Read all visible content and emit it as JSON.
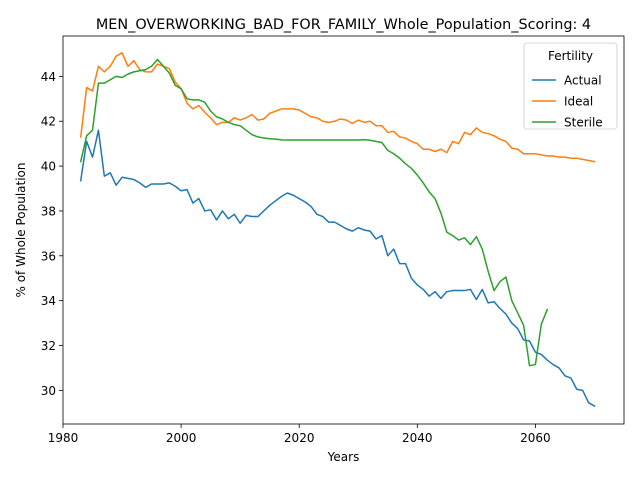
{
  "chart_data": {
    "type": "line",
    "title": "MEN_OVERWORKING_BAD_FOR_FAMILY_Whole_Population_Scoring: 4",
    "xlabel": "Years",
    "ylabel": "% of Whole Population",
    "xlim": [
      1980,
      2075
    ],
    "ylim": [
      28.5,
      45.8
    ],
    "xticks": [
      1980,
      2000,
      2020,
      2040,
      2060
    ],
    "yticks": [
      30,
      32,
      34,
      36,
      38,
      40,
      42,
      44
    ],
    "grid": false,
    "legend": {
      "title": "Fertility",
      "position": "top-right"
    },
    "series": [
      {
        "name": "Actual",
        "color": "#1f77b4",
        "points": [
          [
            1983,
            39.35
          ],
          [
            1984,
            41.1
          ],
          [
            1985,
            40.4
          ],
          [
            1986,
            41.6
          ],
          [
            1987,
            39.55
          ],
          [
            1988,
            39.7
          ],
          [
            1989,
            39.15
          ],
          [
            1990,
            39.5
          ],
          [
            1991,
            39.45
          ],
          [
            1992,
            39.4
          ],
          [
            1993,
            39.25
          ],
          [
            1994,
            39.05
          ],
          [
            1995,
            39.2
          ],
          [
            1996,
            39.2
          ],
          [
            1997,
            39.2
          ],
          [
            1998,
            39.25
          ],
          [
            1999,
            39.1
          ],
          [
            2000,
            38.9
          ],
          [
            2001,
            38.95
          ],
          [
            2002,
            38.35
          ],
          [
            2003,
            38.55
          ],
          [
            2004,
            38.0
          ],
          [
            2005,
            38.05
          ],
          [
            2006,
            37.6
          ],
          [
            2007,
            38.0
          ],
          [
            2008,
            37.65
          ],
          [
            2009,
            37.85
          ],
          [
            2010,
            37.45
          ],
          [
            2011,
            37.8
          ],
          [
            2012,
            37.75
          ],
          [
            2013,
            37.75
          ],
          [
            2014,
            38.0
          ],
          [
            2015,
            38.25
          ],
          [
            2016,
            38.45
          ],
          [
            2017,
            38.65
          ],
          [
            2018,
            38.8
          ],
          [
            2019,
            38.7
          ],
          [
            2020,
            38.55
          ],
          [
            2021,
            38.4
          ],
          [
            2022,
            38.2
          ],
          [
            2023,
            37.85
          ],
          [
            2024,
            37.75
          ],
          [
            2025,
            37.5
          ],
          [
            2026,
            37.5
          ],
          [
            2027,
            37.35
          ],
          [
            2028,
            37.2
          ],
          [
            2029,
            37.1
          ],
          [
            2030,
            37.25
          ],
          [
            2031,
            37.15
          ],
          [
            2032,
            37.1
          ],
          [
            2033,
            36.75
          ],
          [
            2034,
            36.9
          ],
          [
            2035,
            36.0
          ],
          [
            2036,
            36.3
          ],
          [
            2037,
            35.65
          ],
          [
            2038,
            35.65
          ],
          [
            2039,
            35.0
          ],
          [
            2040,
            34.7
          ],
          [
            2041,
            34.5
          ],
          [
            2042,
            34.2
          ],
          [
            2043,
            34.4
          ],
          [
            2044,
            34.1
          ],
          [
            2045,
            34.4
          ],
          [
            2046,
            34.45
          ],
          [
            2047,
            34.45
          ],
          [
            2048,
            34.45
          ],
          [
            2049,
            34.5
          ],
          [
            2050,
            34.05
          ],
          [
            2051,
            34.5
          ],
          [
            2052,
            33.9
          ],
          [
            2053,
            33.95
          ],
          [
            2054,
            33.65
          ],
          [
            2055,
            33.4
          ],
          [
            2056,
            33.0
          ],
          [
            2057,
            32.75
          ],
          [
            2058,
            32.25
          ],
          [
            2059,
            32.2
          ],
          [
            2060,
            31.7
          ],
          [
            2061,
            31.6
          ],
          [
            2062,
            31.35
          ],
          [
            2063,
            31.15
          ],
          [
            2064,
            31.0
          ],
          [
            2065,
            30.65
          ],
          [
            2066,
            30.55
          ],
          [
            2067,
            30.05
          ],
          [
            2068,
            30.0
          ],
          [
            2069,
            29.45
          ],
          [
            2070,
            29.3
          ]
        ]
      },
      {
        "name": "Ideal",
        "color": "#ff7f0e",
        "points": [
          [
            1983,
            41.3
          ],
          [
            1984,
            43.5
          ],
          [
            1985,
            43.35
          ],
          [
            1986,
            44.45
          ],
          [
            1987,
            44.2
          ],
          [
            1988,
            44.45
          ],
          [
            1989,
            44.9
          ],
          [
            1990,
            45.05
          ],
          [
            1991,
            44.45
          ],
          [
            1992,
            44.7
          ],
          [
            1993,
            44.3
          ],
          [
            1994,
            44.2
          ],
          [
            1995,
            44.2
          ],
          [
            1996,
            44.55
          ],
          [
            1997,
            44.45
          ],
          [
            1998,
            44.35
          ],
          [
            1999,
            43.75
          ],
          [
            2000,
            43.45
          ],
          [
            2001,
            42.8
          ],
          [
            2002,
            42.55
          ],
          [
            2003,
            42.7
          ],
          [
            2004,
            42.4
          ],
          [
            2005,
            42.15
          ],
          [
            2006,
            41.85
          ],
          [
            2007,
            41.95
          ],
          [
            2008,
            41.95
          ],
          [
            2009,
            42.15
          ],
          [
            2010,
            42.05
          ],
          [
            2011,
            42.15
          ],
          [
            2012,
            42.3
          ],
          [
            2013,
            42.05
          ],
          [
            2014,
            42.1
          ],
          [
            2015,
            42.35
          ],
          [
            2016,
            42.45
          ],
          [
            2017,
            42.55
          ],
          [
            2018,
            42.55
          ],
          [
            2019,
            42.55
          ],
          [
            2020,
            42.5
          ],
          [
            2021,
            42.35
          ],
          [
            2022,
            42.2
          ],
          [
            2023,
            42.15
          ],
          [
            2024,
            42.0
          ],
          [
            2025,
            41.95
          ],
          [
            2026,
            42.0
          ],
          [
            2027,
            42.1
          ],
          [
            2028,
            42.05
          ],
          [
            2029,
            41.9
          ],
          [
            2030,
            42.05
          ],
          [
            2031,
            41.95
          ],
          [
            2032,
            42.0
          ],
          [
            2033,
            41.8
          ],
          [
            2034,
            41.8
          ],
          [
            2035,
            41.5
          ],
          [
            2036,
            41.55
          ],
          [
            2037,
            41.3
          ],
          [
            2038,
            41.25
          ],
          [
            2039,
            41.1
          ],
          [
            2040,
            41.0
          ],
          [
            2041,
            40.75
          ],
          [
            2042,
            40.75
          ],
          [
            2043,
            40.65
          ],
          [
            2044,
            40.75
          ],
          [
            2045,
            40.6
          ],
          [
            2046,
            41.1
          ],
          [
            2047,
            41.0
          ],
          [
            2048,
            41.5
          ],
          [
            2049,
            41.4
          ],
          [
            2050,
            41.7
          ],
          [
            2051,
            41.5
          ],
          [
            2052,
            41.45
          ],
          [
            2053,
            41.35
          ],
          [
            2054,
            41.2
          ],
          [
            2055,
            41.1
          ],
          [
            2056,
            40.8
          ],
          [
            2057,
            40.75
          ],
          [
            2058,
            40.55
          ],
          [
            2059,
            40.55
          ],
          [
            2060,
            40.55
          ],
          [
            2061,
            40.5
          ],
          [
            2062,
            40.45
          ],
          [
            2063,
            40.45
          ],
          [
            2064,
            40.4
          ],
          [
            2065,
            40.4
          ],
          [
            2066,
            40.35
          ],
          [
            2067,
            40.35
          ],
          [
            2068,
            40.3
          ],
          [
            2069,
            40.25
          ],
          [
            2070,
            40.2
          ]
        ]
      },
      {
        "name": "Sterile",
        "color": "#2ca02c",
        "points": [
          [
            1983,
            40.2
          ],
          [
            1984,
            41.35
          ],
          [
            1985,
            41.6
          ],
          [
            1986,
            43.7
          ],
          [
            1987,
            43.7
          ],
          [
            1988,
            43.85
          ],
          [
            1989,
            44.0
          ],
          [
            1990,
            43.95
          ],
          [
            1991,
            44.1
          ],
          [
            1992,
            44.2
          ],
          [
            1993,
            44.25
          ],
          [
            1994,
            44.3
          ],
          [
            1995,
            44.45
          ],
          [
            1996,
            44.75
          ],
          [
            1997,
            44.45
          ],
          [
            1998,
            44.15
          ],
          [
            1999,
            43.6
          ],
          [
            2000,
            43.45
          ],
          [
            2001,
            43.0
          ],
          [
            2002,
            42.95
          ],
          [
            2003,
            42.95
          ],
          [
            2004,
            42.85
          ],
          [
            2005,
            42.45
          ],
          [
            2006,
            42.2
          ],
          [
            2007,
            42.1
          ],
          [
            2008,
            41.95
          ],
          [
            2009,
            41.85
          ],
          [
            2010,
            41.8
          ],
          [
            2011,
            41.6
          ],
          [
            2012,
            41.4
          ],
          [
            2013,
            41.3
          ],
          [
            2014,
            41.25
          ],
          [
            2015,
            41.22
          ],
          [
            2016,
            41.2
          ],
          [
            2017,
            41.17
          ],
          [
            2018,
            41.16
          ],
          [
            2019,
            41.16
          ],
          [
            2020,
            41.16
          ],
          [
            2021,
            41.16
          ],
          [
            2022,
            41.16
          ],
          [
            2023,
            41.16
          ],
          [
            2024,
            41.16
          ],
          [
            2025,
            41.16
          ],
          [
            2026,
            41.16
          ],
          [
            2027,
            41.16
          ],
          [
            2028,
            41.16
          ],
          [
            2029,
            41.16
          ],
          [
            2030,
            41.16
          ],
          [
            2031,
            41.18
          ],
          [
            2032,
            41.15
          ],
          [
            2033,
            41.1
          ],
          [
            2034,
            41.05
          ],
          [
            2035,
            40.7
          ],
          [
            2036,
            40.55
          ],
          [
            2037,
            40.35
          ],
          [
            2038,
            40.1
          ],
          [
            2039,
            39.9
          ],
          [
            2040,
            39.6
          ],
          [
            2041,
            39.25
          ],
          [
            2042,
            38.85
          ],
          [
            2043,
            38.55
          ],
          [
            2044,
            37.9
          ],
          [
            2045,
            37.05
          ],
          [
            2046,
            36.9
          ],
          [
            2047,
            36.7
          ],
          [
            2048,
            36.8
          ],
          [
            2049,
            36.5
          ],
          [
            2050,
            36.85
          ],
          [
            2051,
            36.3
          ],
          [
            2052,
            35.3
          ],
          [
            2053,
            34.45
          ],
          [
            2054,
            34.85
          ],
          [
            2055,
            35.05
          ],
          [
            2056,
            34.0
          ],
          [
            2057,
            33.45
          ],
          [
            2058,
            32.9
          ],
          [
            2059,
            31.1
          ],
          [
            2060,
            31.15
          ],
          [
            2061,
            32.95
          ],
          [
            2062,
            33.6
          ]
        ]
      }
    ]
  }
}
